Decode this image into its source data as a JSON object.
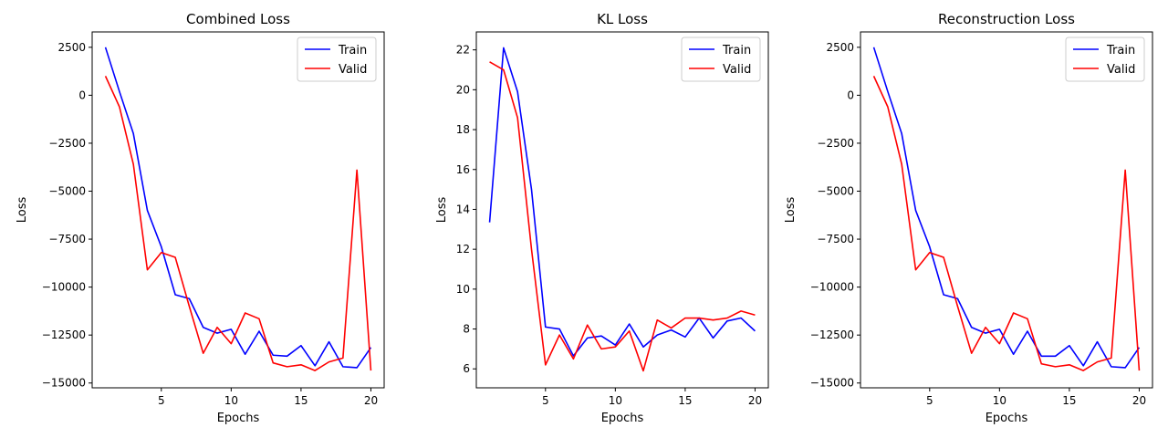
{
  "chart_data": [
    {
      "type": "line",
      "title": "Combined Loss",
      "xlabel": "Epochs",
      "ylabel": "Loss",
      "xlim": [
        0.05,
        20.95
      ],
      "ylim": [
        -15250,
        3300
      ],
      "xticks": [
        5,
        10,
        15,
        20
      ],
      "xtick_labels": [
        "5",
        "10",
        "15",
        "20"
      ],
      "yticks": [
        2500,
        0,
        -2500,
        -5000,
        -7500,
        -10000,
        -12500,
        -15000
      ],
      "ytick_labels": [
        "2500",
        "0",
        "−2500",
        "−5000",
        "−7500",
        "−10000",
        "−12500",
        "−15000"
      ],
      "grid": false,
      "legend": "top-right",
      "x": [
        1,
        2,
        3,
        4,
        5,
        6,
        7,
        8,
        9,
        10,
        11,
        12,
        13,
        14,
        15,
        16,
        17,
        18,
        19,
        20
      ],
      "series": [
        {
          "name": "Train",
          "color": "#0000ff",
          "values": [
            2500,
            200,
            -2000,
            -6000,
            -7900,
            -10400,
            -10600,
            -12100,
            -12400,
            -12200,
            -13500,
            -12300,
            -13550,
            -13600,
            -13050,
            -14100,
            -12850,
            -14150,
            -14200,
            -13150
          ]
        },
        {
          "name": "Valid",
          "color": "#ff0000",
          "values": [
            1000,
            -600,
            -3600,
            -9100,
            -8200,
            -8450,
            -11000,
            -13450,
            -12100,
            -12950,
            -11350,
            -11650,
            -13950,
            -14150,
            -14050,
            -14350,
            -13900,
            -13700,
            -3900,
            -14350
          ]
        }
      ]
    },
    {
      "type": "line",
      "title": "KL Loss",
      "xlabel": "Epochs",
      "ylabel": "Loss",
      "xlim": [
        0.05,
        20.95
      ],
      "ylim": [
        5.05,
        22.9
      ],
      "xticks": [
        5,
        10,
        15,
        20
      ],
      "xtick_labels": [
        "5",
        "10",
        "15",
        "20"
      ],
      "yticks": [
        22,
        20,
        18,
        16,
        14,
        12,
        10,
        8,
        6
      ],
      "ytick_labels": [
        "22",
        "20",
        "18",
        "16",
        "14",
        "12",
        "10",
        "8",
        "6"
      ],
      "grid": false,
      "legend": "top-right",
      "x": [
        1,
        2,
        3,
        4,
        5,
        6,
        7,
        8,
        9,
        10,
        11,
        12,
        13,
        14,
        15,
        16,
        17,
        18,
        19,
        20
      ],
      "series": [
        {
          "name": "Train",
          "color": "#0000ff",
          "values": [
            13.35,
            22.1,
            19.9,
            15.0,
            8.1,
            8.0,
            6.65,
            7.55,
            7.65,
            7.2,
            8.25,
            7.1,
            7.7,
            7.95,
            7.6,
            8.55,
            7.55,
            8.4,
            8.55,
            7.9
          ]
        },
        {
          "name": "Valid",
          "color": "#ff0000",
          "values": [
            21.4,
            21.0,
            18.6,
            12.0,
            6.2,
            7.7,
            6.5,
            8.2,
            7.0,
            7.1,
            7.9,
            5.9,
            8.45,
            8.05,
            8.55,
            8.55,
            8.45,
            8.55,
            8.9,
            8.7
          ]
        }
      ]
    },
    {
      "type": "line",
      "title": "Reconstruction Loss",
      "xlabel": "Epochs",
      "ylabel": "Loss",
      "xlim": [
        0.05,
        20.95
      ],
      "ylim": [
        -15250,
        3300
      ],
      "xticks": [
        5,
        10,
        15,
        20
      ],
      "xtick_labels": [
        "5",
        "10",
        "15",
        "20"
      ],
      "yticks": [
        2500,
        0,
        -2500,
        -5000,
        -7500,
        -10000,
        -12500,
        -15000
      ],
      "ytick_labels": [
        "2500",
        "0",
        "−2500",
        "−5000",
        "−7500",
        "−10000",
        "−12500",
        "−15000"
      ],
      "grid": false,
      "legend": "top-right",
      "x": [
        1,
        2,
        3,
        4,
        5,
        6,
        7,
        8,
        9,
        10,
        11,
        12,
        13,
        14,
        15,
        16,
        17,
        18,
        19,
        20
      ],
      "series": [
        {
          "name": "Train",
          "color": "#0000ff",
          "values": [
            2500,
            200,
            -2000,
            -6000,
            -7900,
            -10400,
            -10600,
            -12100,
            -12400,
            -12200,
            -13500,
            -12300,
            -13600,
            -13600,
            -13050,
            -14100,
            -12850,
            -14150,
            -14200,
            -13150
          ]
        },
        {
          "name": "Valid",
          "color": "#ff0000",
          "values": [
            1000,
            -600,
            -3600,
            -9100,
            -8200,
            -8450,
            -11000,
            -13450,
            -12100,
            -12950,
            -11350,
            -11650,
            -14000,
            -14150,
            -14050,
            -14350,
            -13900,
            -13700,
            -3900,
            -14350
          ]
        }
      ]
    }
  ]
}
